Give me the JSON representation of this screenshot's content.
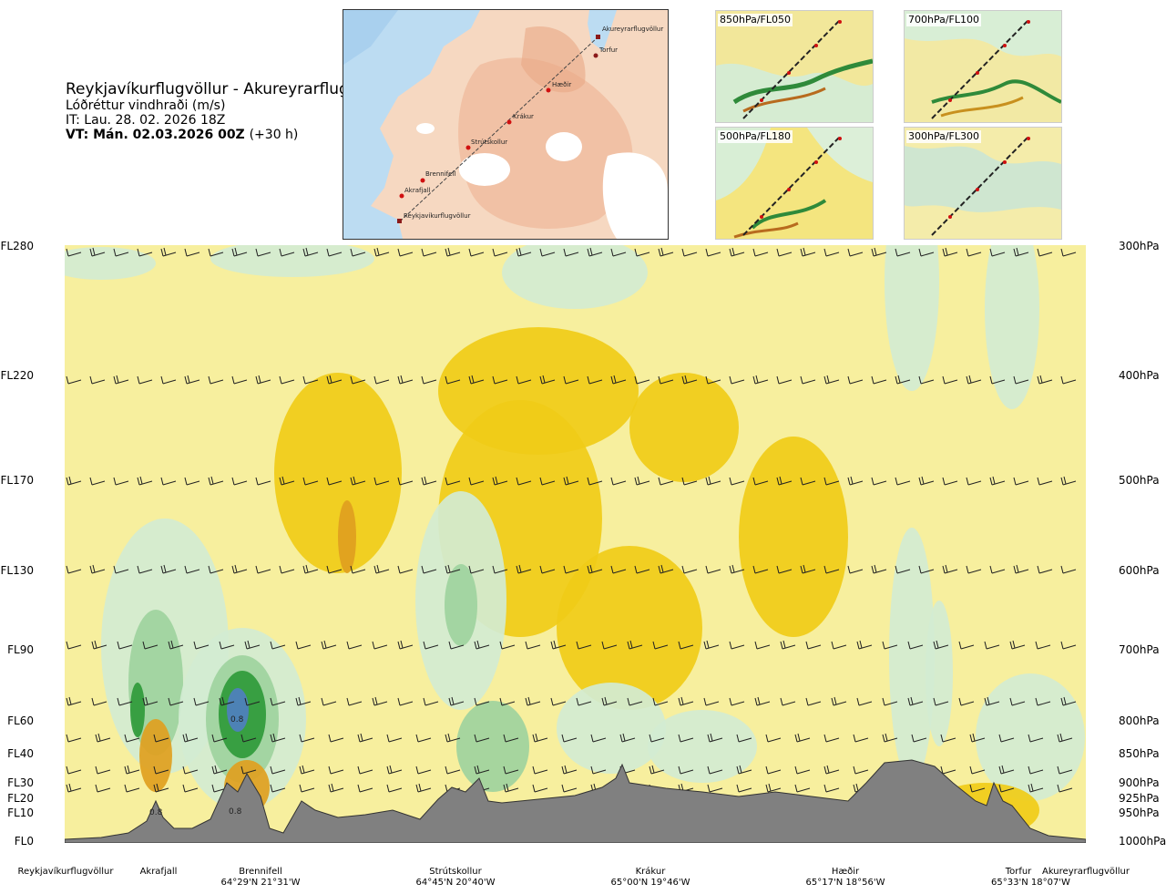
{
  "header": {
    "title": "Reykjavíkurflugvöllur - Akureyrarflugvöllur",
    "subtitle": "Lóðréttur vindhraði (m/s)",
    "issue_time": "IT: Lau. 28. 02. 2026 18Z",
    "valid_prefix": "VT:",
    "valid_time": "Mán. 02.03.2026 00Z",
    "lead_time": "(+30 h)"
  },
  "route_map": {
    "points": [
      "Akureyrarflugvöllur",
      "Torfur",
      "Hæðir",
      "Krákur",
      "Strútskollur",
      "Brennifell",
      "Akrafjall",
      "Reykjavíkurflugvöllur"
    ]
  },
  "thumbnails": [
    {
      "label": "850hPa/FL050"
    },
    {
      "label": "700hPa/FL100"
    },
    {
      "label": "500hPa/FL180"
    },
    {
      "label": "300hPa/FL300"
    }
  ],
  "chart_data": {
    "type": "heatmap",
    "title": "Reykjavíkurflugvöllur - Akureyrarflugvöllur",
    "left_axis_labels": [
      "FL280",
      "FL220",
      "FL170",
      "FL130",
      "FL90",
      "FL60",
      "FL40",
      "FL30",
      "FL20",
      "FL10",
      "FL0"
    ],
    "right_axis_labels": [
      "300hPa",
      "400hPa",
      "500hPa",
      "600hPa",
      "700hPa",
      "800hPa",
      "850hPa",
      "900hPa",
      "925hPa",
      "950hPa",
      "1000hPa"
    ],
    "pressure_levels_hpa": [
      300,
      400,
      500,
      600,
      700,
      800,
      850,
      900,
      925,
      950,
      1000
    ],
    "route_points": [
      {
        "name": "Reykjavíkurflugvöllur",
        "coords": "",
        "pos": 0.0
      },
      {
        "name": "Akrafjall",
        "coords": "",
        "pos": 0.09
      },
      {
        "name": "Brennifell",
        "coords": "64°29'N 21°31'W",
        "pos": 0.19
      },
      {
        "name": "Strútskollur",
        "coords": "64°45'N 20°40'W",
        "pos": 0.38
      },
      {
        "name": "Krákur",
        "coords": "65°00'N 19°46'W",
        "pos": 0.57
      },
      {
        "name": "Hæðir",
        "coords": "65°17'N 18°56'W",
        "pos": 0.77
      },
      {
        "name": "Torfur",
        "coords": "65°33'N 18°07'W",
        "pos": 0.94
      },
      {
        "name": "Akureyrarflugvöllur",
        "coords": "",
        "pos": 1.0
      }
    ],
    "annotations": [
      "0.8",
      "0.8",
      "0.8"
    ],
    "colors": {
      "strong_sink": "#dfa020",
      "sink": "#f0cc18",
      "weak_sink": "#f7ef9e",
      "neutral": "#fffde0",
      "weak_rise": "#d2ecd2",
      "rise": "#9ed29e",
      "strong_rise": "#2f9a3a",
      "very_strong_rise": "#4f7fbf",
      "terrain": "#808080"
    },
    "grid": false,
    "legend": "none"
  }
}
